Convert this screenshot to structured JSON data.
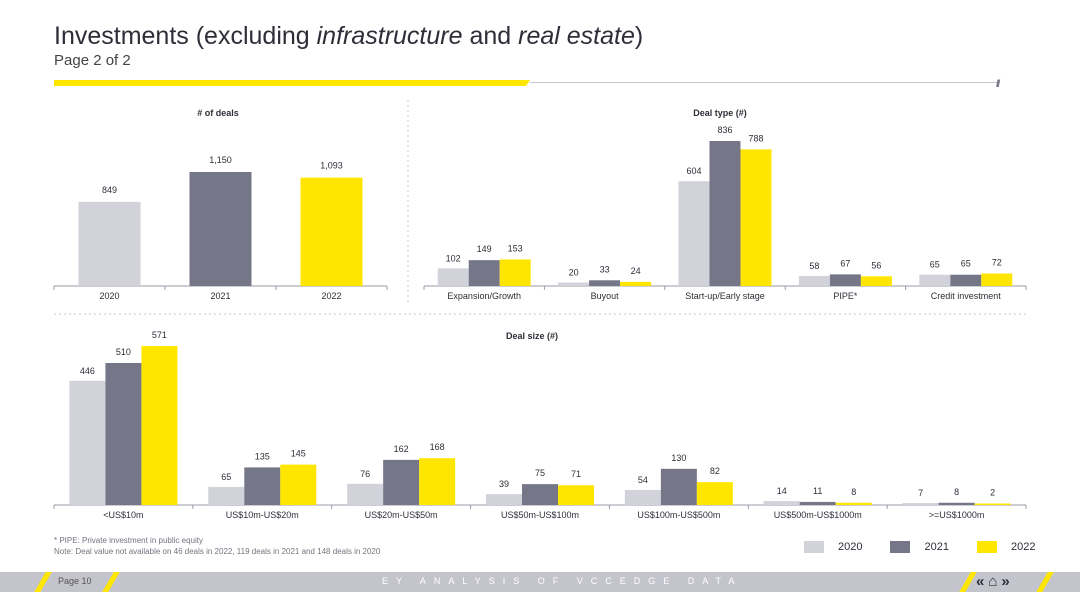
{
  "header": {
    "title_prefix": "Investments (excluding ",
    "title_em1": "infrastructure",
    "title_mid": " and ",
    "title_em2": "real estate",
    "title_suffix": ")",
    "subtitle": "Page 2 of 2"
  },
  "colors": {
    "y2020": "#d2d2da",
    "y2021": "#767689",
    "y2022": "#ffe600",
    "accent": "#ffe600",
    "footer": "#c4c4cd"
  },
  "legend": [
    "2020",
    "2021",
    "2022"
  ],
  "footnotes": {
    "pipe": "* PIPE: Private investment in public equity",
    "note": "Note: Deal value not available on 46 deals in 2022, 119 deals in 2021 and 148 deals in 2020"
  },
  "footer": {
    "page": "Page 10",
    "caption": "EY ANALYSIS OF VCCEDGE DATA",
    "nav_prev": "«",
    "nav_home": "⌂",
    "nav_next": "»"
  },
  "chart_data": [
    {
      "id": "deals",
      "type": "bar",
      "title": "# of deals",
      "categories": [
        "2020",
        "2021",
        "2022"
      ],
      "values": [
        849,
        1150,
        1093
      ],
      "labels": [
        "849",
        "1,150",
        "1,093"
      ]
    },
    {
      "id": "dealtype",
      "type": "bar",
      "title": "Deal type (#)",
      "categories": [
        "Expansion/Growth",
        "Buyout",
        "Start-up/Early stage",
        "PIPE*",
        "Credit investment"
      ],
      "series": [
        {
          "name": "2020",
          "values": [
            102,
            20,
            604,
            58,
            65
          ]
        },
        {
          "name": "2021",
          "values": [
            149,
            33,
            836,
            67,
            65
          ]
        },
        {
          "name": "2022",
          "values": [
            153,
            24,
            788,
            56,
            72
          ]
        }
      ]
    },
    {
      "id": "dealsize",
      "type": "bar",
      "title": "Deal size (#)",
      "categories": [
        "<US$10m",
        "US$10m-US$20m",
        "US$20m-US$50m",
        "US$50m-US$100m",
        "US$100m-US$500m",
        "US$500m-US$1000m",
        ">=US$1000m"
      ],
      "series": [
        {
          "name": "2020",
          "values": [
            446,
            65,
            76,
            39,
            54,
            14,
            7
          ]
        },
        {
          "name": "2021",
          "values": [
            510,
            135,
            162,
            75,
            130,
            11,
            8
          ]
        },
        {
          "name": "2022",
          "values": [
            571,
            145,
            168,
            71,
            82,
            8,
            2
          ]
        }
      ]
    }
  ]
}
